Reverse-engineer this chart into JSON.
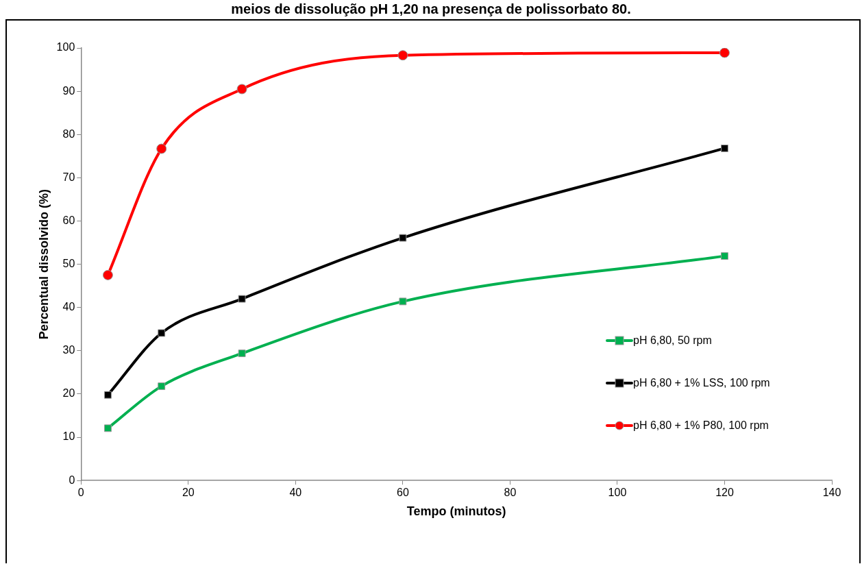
{
  "chart_data": {
    "type": "line",
    "title": "meios de dissolução pH 1,20 na presença de polissorbato 80.",
    "xlabel": "Tempo (minutos)",
    "ylabel": "Percentual dissolvido (%)",
    "x": [
      5,
      15,
      30,
      60,
      120
    ],
    "series": [
      {
        "name": "pH 6,80, 50 rpm",
        "color": "#00b050",
        "marker": "square",
        "values": [
          12.1,
          21.8,
          29.4,
          41.4,
          51.9
        ]
      },
      {
        "name": "pH 6,80 + 1% LSS, 100 rpm",
        "color": "#000000",
        "marker": "square",
        "values": [
          19.8,
          34.1,
          42.0,
          56.1,
          76.8
        ]
      },
      {
        "name": "pH 6,80 + 1% P80, 100 rpm",
        "color": "#ff0000",
        "marker": "circle",
        "values": [
          47.5,
          76.7,
          90.5,
          98.3,
          98.9
        ]
      }
    ],
    "xlim": [
      0,
      140
    ],
    "xticks": [
      0,
      20,
      40,
      60,
      80,
      100,
      120,
      140
    ],
    "ylim": [
      0,
      100
    ],
    "yticks": [
      0,
      10,
      20,
      30,
      40,
      50,
      60,
      70,
      80,
      90,
      100
    ],
    "grid": false,
    "legend": "right",
    "line_style": "solid"
  }
}
